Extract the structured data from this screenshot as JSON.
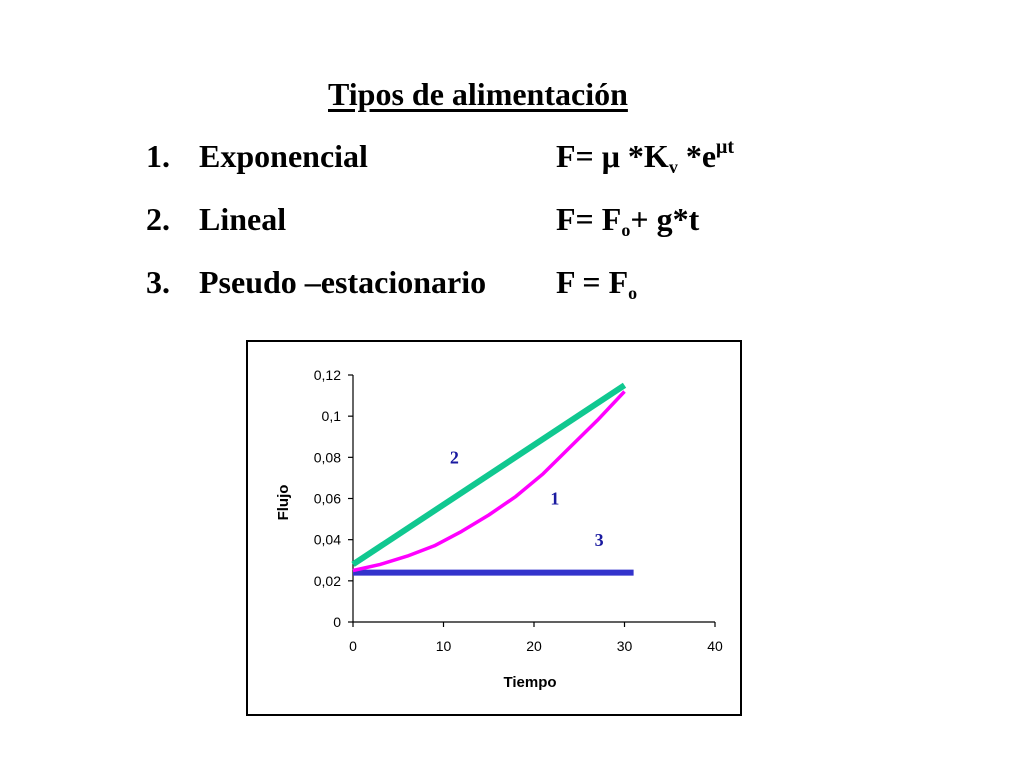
{
  "slide": {
    "title": "Tipos de alimentación",
    "items": [
      {
        "number": "1.",
        "name": "Exponencial",
        "formula_parts": [
          "F= ",
          "μ",
          " *K",
          "v",
          " *e",
          "μt"
        ]
      },
      {
        "number": "2.",
        "name": "Lineal",
        "formula_parts": [
          "F= F",
          "o",
          "+ g*t"
        ]
      },
      {
        "number": "3.",
        "name": "Pseudo –estacionario",
        "formula_parts": [
          "F = F",
          "o"
        ]
      }
    ]
  },
  "chart_data": {
    "type": "line",
    "xlabel": "Tiempo",
    "ylabel": "Flujo",
    "xlim": [
      0,
      40
    ],
    "ylim": [
      0,
      0.12
    ],
    "x_ticks": [
      0,
      10,
      20,
      30,
      40
    ],
    "y_ticks": [
      0,
      0.02,
      0.04,
      0.06,
      0.08,
      0.1,
      0.12
    ],
    "x_tick_labels": [
      "0",
      "10",
      "20",
      "30",
      "40"
    ],
    "y_tick_labels": [
      "0",
      "0,02",
      "0,04",
      "0,06",
      "0,08",
      "0,1",
      "0,12"
    ],
    "grid": false,
    "legend": "none",
    "series": [
      {
        "label": "1",
        "color": "#ff00ff",
        "x": [
          0,
          3,
          6,
          9,
          12,
          15,
          18,
          21,
          24,
          27,
          30
        ],
        "y": [
          0.025,
          0.028,
          0.032,
          0.037,
          0.044,
          0.052,
          0.061,
          0.072,
          0.085,
          0.098,
          0.112
        ]
      },
      {
        "label": "2",
        "color": "#10c890",
        "x": [
          0,
          30
        ],
        "y": [
          0.028,
          0.115
        ]
      },
      {
        "label": "3",
        "color": "#3333cc",
        "x": [
          0,
          31
        ],
        "y": [
          0.024,
          0.024
        ]
      }
    ],
    "annotations": [
      {
        "text": "2",
        "x": 11.2,
        "y": 0.077,
        "color": "#1a1aa0"
      },
      {
        "text": "1",
        "x": 22.3,
        "y": 0.057,
        "color": "#1a1aa0"
      },
      {
        "text": "3",
        "x": 27.2,
        "y": 0.037,
        "color": "#1a1aa0"
      }
    ]
  }
}
